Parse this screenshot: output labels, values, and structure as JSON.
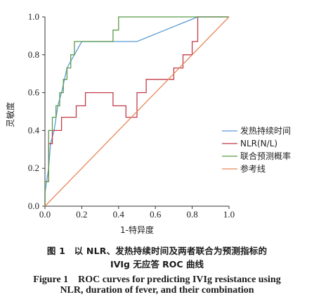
{
  "chart_data": {
    "type": "line",
    "title": "",
    "xlabel": "1-特异度",
    "ylabel": "灵敏度",
    "xlim": [
      0,
      1
    ],
    "ylim": [
      0,
      1
    ],
    "xticks": [
      "0.0",
      "0.2",
      "0.4",
      "0.6",
      "0.8",
      "1.0"
    ],
    "yticks": [
      "0.0",
      "0.2",
      "0.4",
      "0.6",
      "0.8",
      "1.0"
    ],
    "grid": false,
    "legend_position": "right",
    "series": [
      {
        "name": "发热持续时间",
        "color": "#5b9bd5",
        "points": [
          [
            0,
            0
          ],
          [
            0,
            0.07
          ],
          [
            0.02,
            0.2
          ],
          [
            0.03,
            0.33
          ],
          [
            0.05,
            0.4
          ],
          [
            0.07,
            0.53
          ],
          [
            0.09,
            0.6
          ],
          [
            0.12,
            0.73
          ],
          [
            0.2,
            0.87
          ],
          [
            0.5,
            0.87
          ],
          [
            0.83,
            1.0
          ],
          [
            1.0,
            1.0
          ]
        ]
      },
      {
        "name": "NLR(N/L)",
        "color": "#c23a4a",
        "points": [
          [
            0,
            0
          ],
          [
            0,
            0.13
          ],
          [
            0.02,
            0.13
          ],
          [
            0.02,
            0.33
          ],
          [
            0.04,
            0.33
          ],
          [
            0.04,
            0.4
          ],
          [
            0.09,
            0.4
          ],
          [
            0.09,
            0.47
          ],
          [
            0.17,
            0.47
          ],
          [
            0.17,
            0.53
          ],
          [
            0.22,
            0.53
          ],
          [
            0.22,
            0.6
          ],
          [
            0.37,
            0.6
          ],
          [
            0.37,
            0.53
          ],
          [
            0.44,
            0.53
          ],
          [
            0.44,
            0.47
          ],
          [
            0.5,
            0.47
          ],
          [
            0.5,
            0.6
          ],
          [
            0.55,
            0.6
          ],
          [
            0.55,
            0.67
          ],
          [
            0.7,
            0.67
          ],
          [
            0.7,
            0.73
          ],
          [
            0.75,
            0.73
          ],
          [
            0.75,
            0.8
          ],
          [
            0.8,
            0.8
          ],
          [
            0.8,
            0.87
          ],
          [
            0.83,
            0.87
          ],
          [
            0.83,
            1.0
          ],
          [
            1.0,
            1.0
          ]
        ]
      },
      {
        "name": "联合预测概率",
        "color": "#5a9a4a",
        "points": [
          [
            0,
            0
          ],
          [
            0,
            0.13
          ],
          [
            0.02,
            0.13
          ],
          [
            0.02,
            0.4
          ],
          [
            0.04,
            0.4
          ],
          [
            0.04,
            0.47
          ],
          [
            0.06,
            0.47
          ],
          [
            0.06,
            0.53
          ],
          [
            0.08,
            0.53
          ],
          [
            0.08,
            0.6
          ],
          [
            0.1,
            0.6
          ],
          [
            0.1,
            0.67
          ],
          [
            0.12,
            0.67
          ],
          [
            0.12,
            0.73
          ],
          [
            0.14,
            0.73
          ],
          [
            0.14,
            0.8
          ],
          [
            0.16,
            0.8
          ],
          [
            0.16,
            0.87
          ],
          [
            0.37,
            0.87
          ],
          [
            0.37,
            0.93
          ],
          [
            0.4,
            0.93
          ],
          [
            0.4,
            1.0
          ],
          [
            1.0,
            1.0
          ]
        ]
      },
      {
        "name": "参考线",
        "color": "#e8875a",
        "points": [
          [
            0,
            0
          ],
          [
            1,
            1
          ]
        ]
      }
    ]
  },
  "captions": {
    "cn_line1": "图 1　以 NLR、发热持续时间及两者联合为预测指标的",
    "cn_line2": "IVIg 无应答 ROC 曲线",
    "en_line1": "Figure 1　ROC curves for predicting IVIg resistance using",
    "en_line2": "NLR, duration of fever, and their combination"
  }
}
